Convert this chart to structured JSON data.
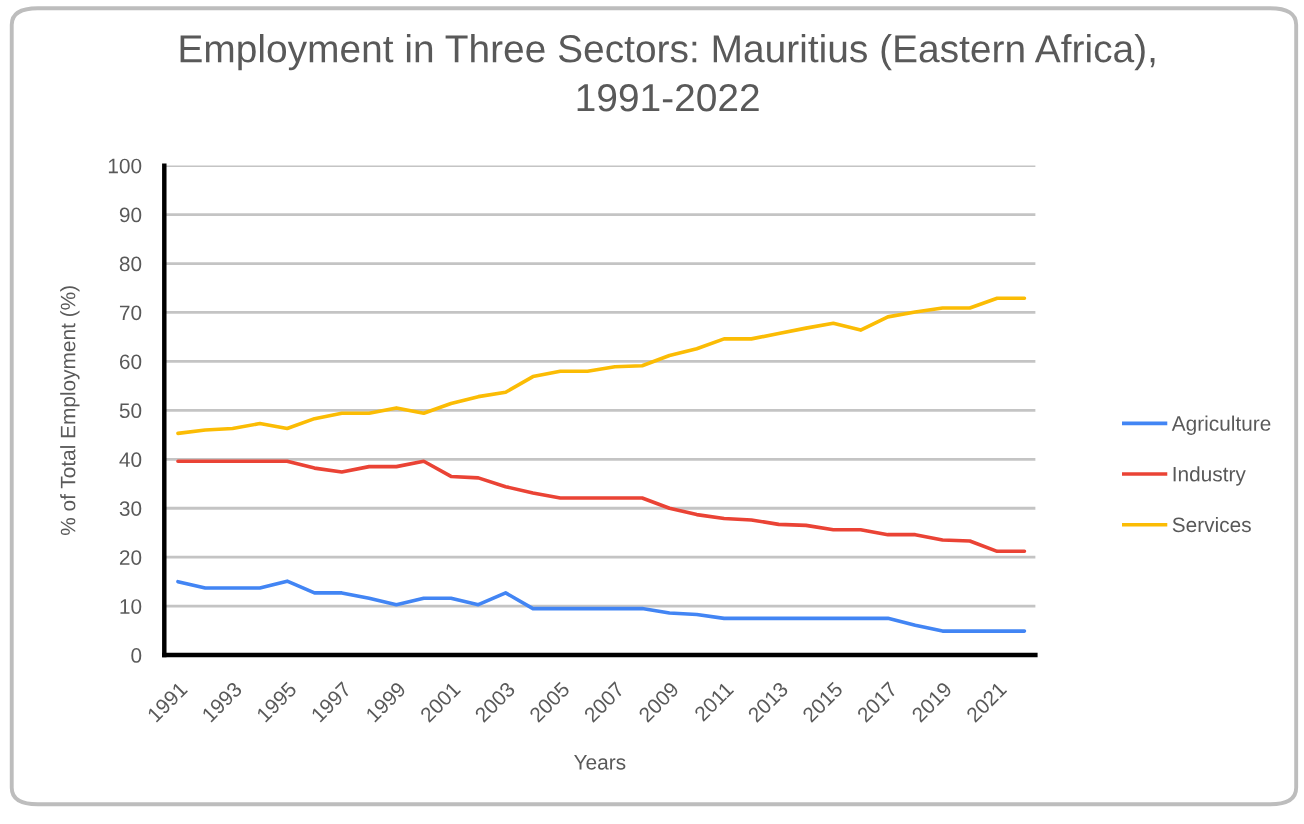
{
  "chart_data": {
    "type": "line",
    "title": "Employment in Three Sectors: Mauritius (Eastern Africa),\n1991-2022",
    "xlabel": "Years",
    "ylabel": "% of Total Employment (%)",
    "categories": [
      "1991",
      null,
      "1993",
      null,
      "1995",
      null,
      "1997",
      null,
      "1999",
      null,
      "2001",
      null,
      "2003",
      null,
      "2005",
      null,
      "2007",
      null,
      "2009",
      null,
      "2011",
      null,
      "2013",
      null,
      "2015",
      null,
      "2017",
      null,
      "2019",
      null,
      "2021",
      null
    ],
    "series": [
      {
        "name": "Agriculture",
        "color": "#4285f4",
        "values": [
          15.0,
          13.7,
          13.7,
          13.7,
          15.1,
          12.7,
          12.7,
          11.6,
          10.3,
          11.6,
          11.6,
          10.3,
          12.7,
          9.5,
          9.5,
          9.5,
          9.5,
          9.5,
          8.6,
          8.3,
          7.5,
          7.5,
          7.5,
          7.5,
          7.5,
          7.5,
          7.5,
          6.1,
          4.9,
          4.9,
          4.9,
          4.9
        ]
      },
      {
        "name": "Industry",
        "color": "#ea4335",
        "values": [
          39.6,
          39.6,
          39.6,
          39.6,
          39.6,
          38.2,
          37.4,
          38.5,
          38.5,
          39.6,
          36.5,
          36.2,
          34.4,
          33.1,
          32.1,
          32.1,
          32.1,
          32.1,
          30.0,
          28.7,
          27.9,
          27.6,
          26.7,
          26.5,
          25.6,
          25.6,
          24.6,
          24.6,
          23.5,
          23.3,
          21.2,
          21.2
        ]
      },
      {
        "name": "Services",
        "color": "#fbbc04",
        "values": [
          45.3,
          46.0,
          46.3,
          47.3,
          46.3,
          48.3,
          49.4,
          49.4,
          50.5,
          49.4,
          51.4,
          52.8,
          53.7,
          56.9,
          58.0,
          58.0,
          58.9,
          59.1,
          61.2,
          62.6,
          64.6,
          64.6,
          65.7,
          66.8,
          67.8,
          66.4,
          69.1,
          70.1,
          70.9,
          70.9,
          72.9,
          72.9
        ]
      }
    ],
    "ylim": [
      0,
      100
    ],
    "yticks": [
      0,
      10,
      20,
      30,
      40,
      50,
      60,
      70,
      80,
      90,
      100
    ],
    "grid": "y",
    "legend": "right",
    "marker": "none",
    "line_style": "solid"
  }
}
